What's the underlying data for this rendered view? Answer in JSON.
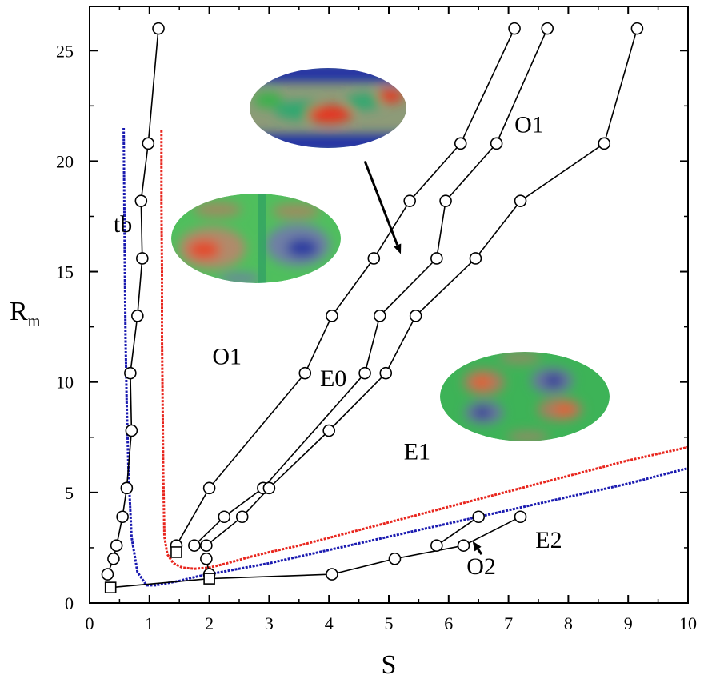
{
  "chart_data": {
    "type": "line",
    "title": "",
    "xlabel": "S",
    "ylabel": "R",
    "ylabel_subscript": "m",
    "xlim": [
      0,
      10
    ],
    "ylim": [
      0,
      27
    ],
    "xticks": [
      "0",
      "1",
      "2",
      "3",
      "4",
      "5",
      "6",
      "7",
      "8",
      "9",
      "10"
    ],
    "yticks": [
      "0",
      "5",
      "10",
      "15",
      "20",
      "25"
    ],
    "grid": false,
    "series": [
      {
        "marker": "circle",
        "x": [
          0.3,
          0.4,
          0.45,
          0.55,
          0.62,
          0.7,
          0.68,
          0.8,
          0.88,
          0.86,
          0.98,
          1.15
        ],
        "y": [
          1.3,
          2,
          2.6,
          3.9,
          5.2,
          7.8,
          10.4,
          13,
          15.6,
          18.2,
          20.8,
          26
        ]
      },
      {
        "marker": "circle",
        "x": [
          1.45,
          2.0,
          3.6,
          4.05,
          4.75,
          5.35,
          6.2,
          7.1
        ],
        "y": [
          2.6,
          5.2,
          10.4,
          13,
          15.6,
          18.2,
          20.8,
          26
        ]
      },
      {
        "marker": "circle",
        "x": [
          1.75,
          2.25,
          2.9,
          4.6,
          4.85,
          5.8,
          5.95,
          6.8,
          7.65
        ],
        "y": [
          2.6,
          3.9,
          5.2,
          10.4,
          13,
          15.6,
          18.2,
          20.8,
          26
        ]
      },
      {
        "marker": "circle",
        "x": [
          1.95,
          2.55,
          3.0,
          4.0,
          4.95,
          5.45,
          6.45,
          7.2,
          8.6,
          9.15
        ],
        "y": [
          2.6,
          3.9,
          5.2,
          7.8,
          10.4,
          13,
          15.6,
          18.2,
          20.8,
          26
        ]
      },
      {
        "marker": "circle",
        "x": [
          1.95,
          2.0
        ],
        "y": [
          2.0,
          1.3
        ]
      },
      {
        "marker": "circle",
        "x": [
          4.05,
          5.1,
          6.25,
          7.2
        ],
        "y": [
          1.3,
          2.0,
          2.6,
          3.9
        ]
      },
      {
        "marker": "circle",
        "x": [
          5.8,
          6.5
        ],
        "y": [
          2.6,
          3.9
        ]
      }
    ],
    "line_segments": [
      {
        "x": [
          0.35,
          2.0
        ],
        "y": [
          0.7,
          1.1
        ]
      },
      {
        "x": [
          2.0,
          4.05
        ],
        "y": [
          1.1,
          1.3
        ]
      }
    ],
    "square_markers": {
      "x": [
        0.35,
        1.45,
        2.0
      ],
      "y": [
        0.7,
        2.3,
        1.1
      ]
    },
    "dashed_curves": [
      {
        "color": "#1a1ab0",
        "x": [
          0.57,
          0.58,
          0.59,
          0.6,
          0.62,
          0.65,
          0.7,
          0.8,
          0.95,
          1.1,
          1.3,
          1.5,
          1.8,
          2.2,
          2.6,
          3.0,
          3.5,
          4.0,
          4.5,
          5.0,
          5.5,
          6.0,
          6.5,
          7.0,
          7.5,
          8.0,
          8.5,
          9.0,
          9.5,
          10.0
        ],
        "y": [
          21.5,
          18,
          15,
          12,
          9,
          6,
          3,
          1.4,
          0.8,
          0.8,
          0.9,
          1.0,
          1.2,
          1.4,
          1.6,
          1.8,
          2.1,
          2.4,
          2.7,
          3.0,
          3.3,
          3.6,
          3.9,
          4.2,
          4.5,
          4.8,
          5.1,
          5.4,
          5.75,
          6.1
        ]
      },
      {
        "color": "#e8251d",
        "x": [
          1.2,
          1.2,
          1.21,
          1.21,
          1.22,
          1.23,
          1.25,
          1.3,
          1.4,
          1.55,
          1.75,
          2.0,
          2.3,
          2.7,
          3.0,
          3.5,
          4.0,
          4.5,
          5.0,
          5.5,
          6.0,
          6.5,
          7.0,
          7.5,
          8.0,
          8.5,
          9.0,
          9.5,
          10.0
        ],
        "y": [
          21.4,
          18,
          15,
          12,
          9,
          6,
          3,
          2.2,
          1.8,
          1.6,
          1.55,
          1.6,
          1.8,
          2.1,
          2.3,
          2.6,
          2.95,
          3.3,
          3.65,
          4.0,
          4.35,
          4.7,
          5.05,
          5.4,
          5.75,
          6.1,
          6.45,
          6.75,
          7.05
        ]
      }
    ],
    "annotations": [
      {
        "text": "tb",
        "x": 0.4,
        "y": 16.8
      },
      {
        "text": "O1",
        "x": 2.05,
        "y": 10.8
      },
      {
        "text": "E0",
        "x": 3.85,
        "y": 9.8
      },
      {
        "text": "O1",
        "x": 7.1,
        "y": 21.3
      },
      {
        "text": "E1",
        "x": 5.25,
        "y": 6.5
      },
      {
        "text": "E2",
        "x": 7.45,
        "y": 2.5
      },
      {
        "text": "O2",
        "x": 6.3,
        "y": 1.3
      }
    ],
    "arrows": [
      {
        "from": [
          4.6,
          20.0
        ],
        "to": [
          5.2,
          15.8
        ]
      },
      {
        "from": [
          6.55,
          2.2
        ],
        "to": [
          6.4,
          2.8
        ]
      }
    ],
    "insets": [
      {
        "x": 4.1,
        "y": 22.6,
        "colors": [
          "#1f2fa8",
          "#2e9d6e",
          "#e8301f",
          "#37b24a"
        ]
      },
      {
        "x": 2.85,
        "y": 16.3,
        "colors": [
          "#4fbf5d",
          "#e34a2b",
          "#2b3aa0",
          "#3aad5b"
        ]
      },
      {
        "x": 7.6,
        "y": 9.4,
        "colors": [
          "#3db357",
          "#e55d2c",
          "#2a3796",
          "#3fb55b"
        ]
      }
    ]
  }
}
